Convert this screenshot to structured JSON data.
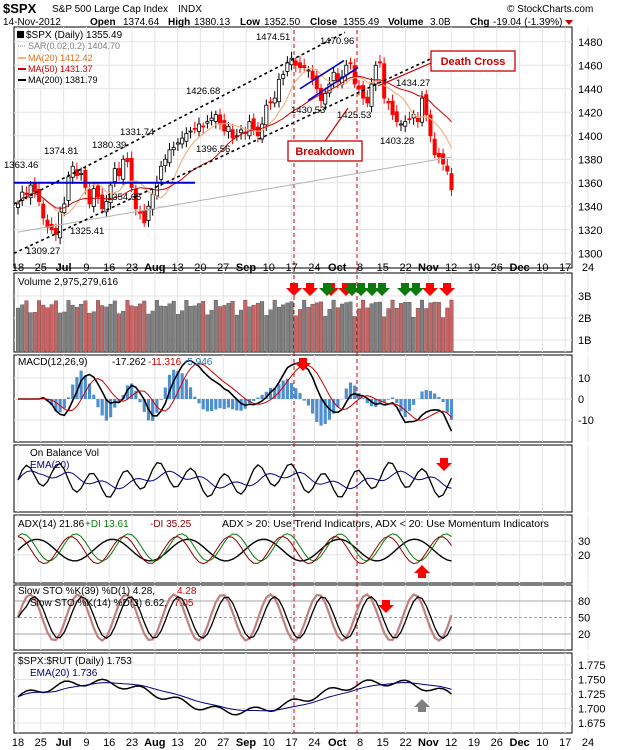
{
  "header": {
    "symbol": "$SPX",
    "name": "S&P 500 Large Cap Index",
    "exchange": "INDX",
    "site": "© StockCharts.com",
    "date": "14-Nov-2012",
    "open_label": "Open",
    "open": "1374.64",
    "high_label": "High",
    "high": "1380.13",
    "low_label": "Low",
    "low": "1352.50",
    "close_label": "Close",
    "close": "1355.49",
    "volume": "3.0B",
    "chg_label": "Chg",
    "chg": "-19.04 (-1.39%)"
  },
  "colors": {
    "up": "#000000",
    "down": "#ff0000",
    "ma20": "#f4b183",
    "ma50": "#cc0000",
    "ma200": "#b4b4b4",
    "sar": "#7f7f7f",
    "vol_up": "#808080",
    "vol_down": "#c86464",
    "macd_hist": "#4f8fd0",
    "ema": "#000080",
    "arrow_down": "#ff0000",
    "arrow_green": "#0a7a0a",
    "arrow_gray": "#808080",
    "trend": "#0000cc"
  },
  "chart_data": {
    "type": "candlestick",
    "x_ticks": [
      "18",
      "25",
      "Jul",
      "9",
      "16",
      "23",
      "Aug",
      "13",
      "20",
      "27",
      "Sep",
      "10",
      "17",
      "24",
      "Oct",
      "8",
      "15",
      "22",
      "Nov",
      "12",
      "19",
      "26",
      "Dec",
      "10",
      "17",
      "24"
    ],
    "price_panel": {
      "legend": [
        {
          "name": "$SPX (Daily) 1355.49",
          "swatch": "up"
        },
        {
          "name": "SAR(0.02,0.2) 1404.70",
          "swatch": "sar"
        },
        {
          "name": "MA(20) 1412.42",
          "swatch": "ma20"
        },
        {
          "name": "MA(50) 1431.37",
          "swatch": "ma50"
        },
        {
          "name": "MA(200) 1381.79",
          "swatch": "up"
        }
      ],
      "ylim": [
        1290,
        1490
      ],
      "y_ticks": [
        "1480",
        "1460",
        "1440",
        "1420",
        "1400",
        "1380",
        "1360",
        "1340",
        "1320",
        "1300"
      ],
      "closes": [
        1342,
        1352,
        1350,
        1358,
        1352,
        1344,
        1330,
        1322,
        1320,
        1316,
        1335,
        1342,
        1365,
        1374,
        1366,
        1368,
        1356,
        1342,
        1355,
        1348,
        1338,
        1344,
        1358,
        1372,
        1366,
        1380,
        1378,
        1356,
        1338,
        1334,
        1326,
        1340,
        1350,
        1360,
        1374,
        1380,
        1388,
        1390,
        1394,
        1398,
        1402,
        1404,
        1406,
        1410,
        1408,
        1412,
        1415,
        1418,
        1410,
        1404,
        1408,
        1398,
        1400,
        1405,
        1402,
        1412,
        1406,
        1400,
        1410,
        1426,
        1428,
        1432,
        1448,
        1452,
        1462,
        1466,
        1460,
        1458,
        1458,
        1456,
        1448,
        1440,
        1430,
        1436,
        1444,
        1454,
        1446,
        1450,
        1460,
        1462,
        1444,
        1440,
        1432,
        1428,
        1444,
        1460,
        1462,
        1432,
        1428,
        1418,
        1412,
        1410,
        1412,
        1414,
        1418,
        1412,
        1432,
        1418,
        1400,
        1384,
        1382,
        1376,
        1370,
        1354
      ],
      "labels": [
        "1363.46",
        "1374.81",
        "1309.27",
        "1325.41",
        "1380.39",
        "1354.65",
        "1331.74",
        "1426.68",
        "1396.56",
        "1474.51",
        "1470.96",
        "1430.53",
        "1425.53",
        "1434.27",
        "1403.28"
      ],
      "annotations": [
        "Death Cross",
        "Breakdown"
      ]
    },
    "volume_panel": {
      "label": "Volume 2,975,279,616",
      "y_ticks": [
        "3B",
        "2B",
        "1B"
      ]
    },
    "macd_panel": {
      "label": "MACD(12,26,9)",
      "macd": "-17.262",
      "signal": "-11.316",
      "hist": "-5.946",
      "y_ticks": [
        "10",
        "0",
        "-10"
      ]
    },
    "obv_panel": {
      "label": "On Balance Vol",
      "ema_label": "EMA(20)"
    },
    "adx_panel": {
      "label": "ADX(14) 21.86",
      "pdi": "+DI 13.61",
      "ndi": "-DI 35.25",
      "note": "ADX > 20: Use Trend Indicators, ADX < 20: Use Momentum Indicators",
      "y_ticks": [
        "30",
        "20"
      ]
    },
    "sto_panel": {
      "line1_label": "Slow STO %K(39) %D(1) 4.28,",
      "line1_v2": "4.28",
      "line2_label": "Slow STO %K(14) %D(3) 6.62,",
      "line2_v2": "7.05",
      "y_ticks": [
        "80",
        "50",
        "20"
      ]
    },
    "ratio_panel": {
      "label": "$SPX:$RUT (Daily) 1.753",
      "ema_label": "EMA(20) 1.736",
      "y_ticks": [
        "1.775",
        "1.750",
        "1.725",
        "1.700",
        "1.675"
      ]
    }
  }
}
